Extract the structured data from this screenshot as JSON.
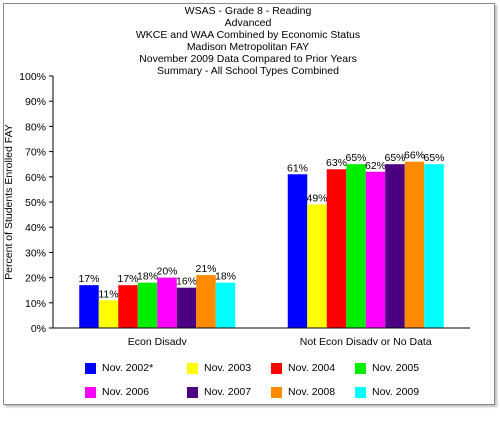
{
  "titles": [
    "WSAS - Grade 8 - Reading",
    "Advanced",
    "WKCE and WAA Combined by Economic Status",
    "Madison Metropolitan FAY",
    "November 2009 Data  Compared to Prior Years",
    "Summary - All School Types Combined"
  ],
  "chart_data": {
    "type": "bar",
    "categories": [
      "Econ Disadv",
      "Not Econ Disadv or No Data"
    ],
    "ylabel": "Percent of Students Enrolled FAY",
    "xlabel": "",
    "ylim": [
      0,
      100
    ],
    "yticks": [
      "0%",
      "10%",
      "20%",
      "30%",
      "40%",
      "50%",
      "60%",
      "70%",
      "80%",
      "90%",
      "100%"
    ],
    "grid": false,
    "legend_position": "bottom",
    "series": [
      {
        "name": "Nov. 2002*",
        "color": "#0000ff",
        "values": [
          17,
          61
        ],
        "labels": [
          "17%",
          "61%"
        ]
      },
      {
        "name": "Nov. 2003",
        "color": "#ffff00",
        "values": [
          11,
          49
        ],
        "labels": [
          "11%",
          "49%"
        ]
      },
      {
        "name": "Nov. 2004",
        "color": "#ff0000",
        "values": [
          17,
          63
        ],
        "labels": [
          "17%",
          "63%"
        ]
      },
      {
        "name": "Nov. 2005",
        "color": "#00ee00",
        "values": [
          18,
          65
        ],
        "labels": [
          "18%",
          "65%"
        ]
      },
      {
        "name": "Nov. 2006",
        "color": "#ff00ff",
        "values": [
          20,
          62
        ],
        "labels": [
          "20%",
          "62%"
        ]
      },
      {
        "name": "Nov. 2007",
        "color": "#4b0082",
        "values": [
          16,
          65
        ],
        "labels": [
          "16%",
          "65%"
        ]
      },
      {
        "name": "Nov. 2008",
        "color": "#ff8c00",
        "values": [
          21,
          66
        ],
        "labels": [
          "21%",
          "66%"
        ]
      },
      {
        "name": "Nov. 2009",
        "color": "#00ffff",
        "values": [
          18,
          65
        ],
        "labels": [
          "18%",
          "65%"
        ]
      }
    ]
  }
}
